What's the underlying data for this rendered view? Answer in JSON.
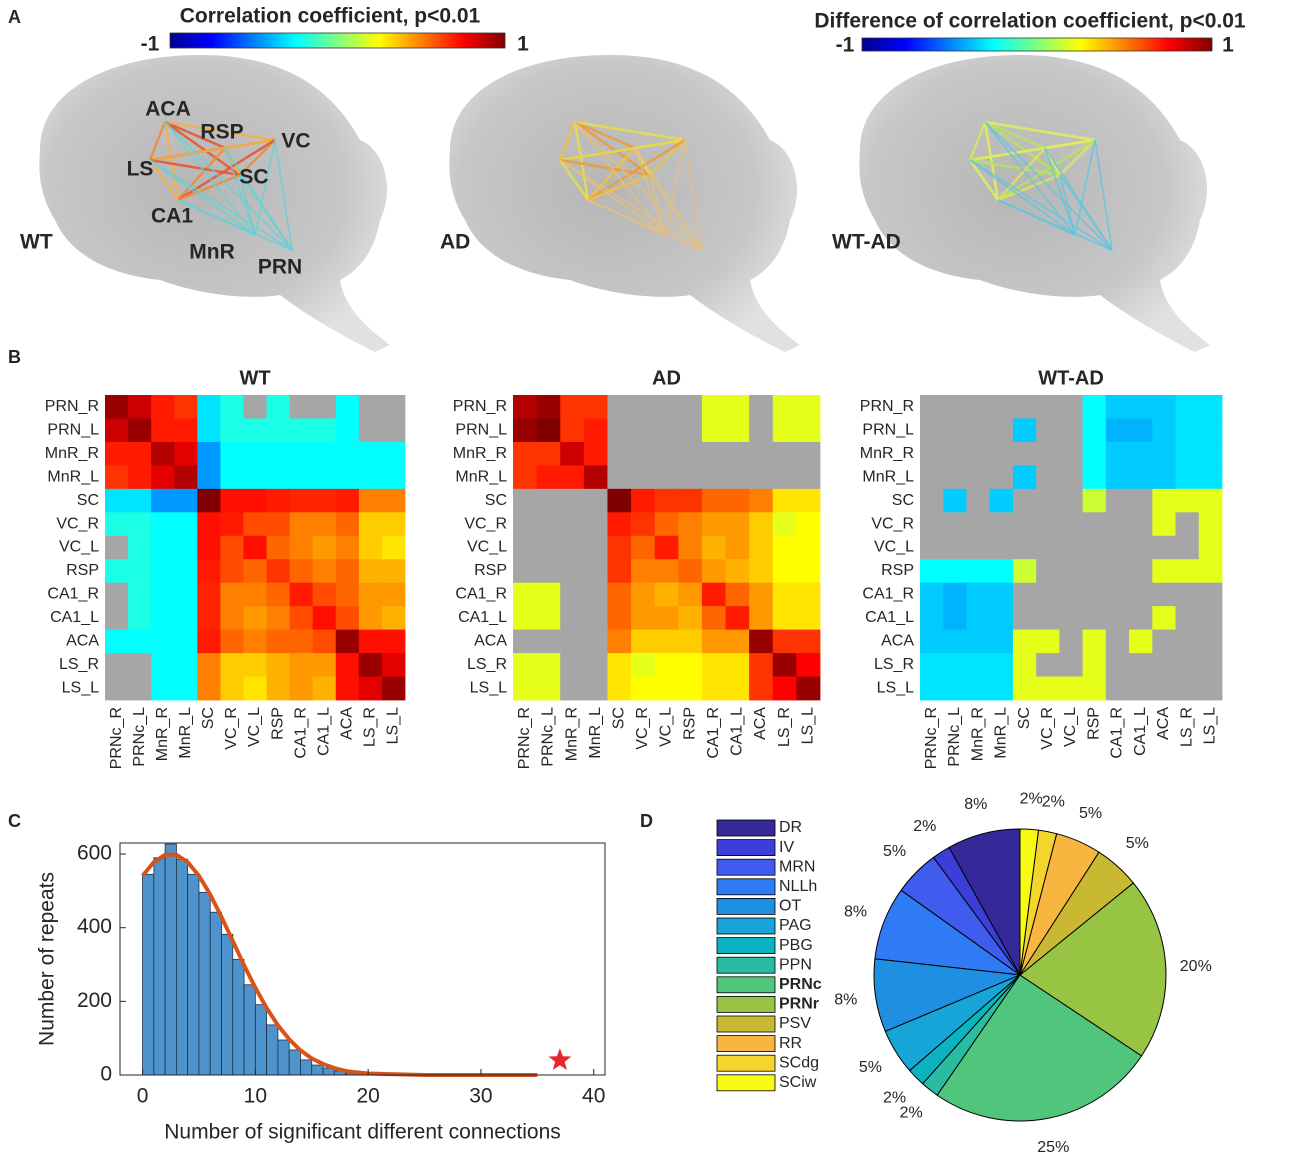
{
  "panel_labels": [
    "A",
    "B",
    "C",
    "D"
  ],
  "panel_a": {
    "colorbars": [
      {
        "title": "Correlation coefficient, p<0.01",
        "ticks": [
          -1,
          1
        ]
      },
      {
        "title": "Difference of correlation coefficient, p<0.01",
        "ticks": [
          -1,
          1
        ]
      }
    ],
    "brains": [
      "WT",
      "AD",
      "WT-AD"
    ],
    "regions": [
      "ACA",
      "RSP",
      "VC",
      "LS",
      "SC",
      "CA1",
      "MnR",
      "PRN"
    ]
  },
  "chart_data": [
    {
      "type": "heatmap",
      "title": "WT",
      "zlim": [
        -1,
        1
      ],
      "colormap": "jet",
      "nan_color": "#a6a6a6",
      "x": [
        "PRNc_R",
        "PRNc_L",
        "MnR_R",
        "MnR_L",
        "SC",
        "VC_R",
        "VC_L",
        "RSP",
        "CA1_R",
        "CA1_L",
        "ACA",
        "LS_R",
        "LS_L"
      ],
      "y": [
        "PRN_R",
        "PRN_L",
        "MnR_R",
        "MnR_L",
        "SC",
        "VC_R",
        "VC_L",
        "RSP",
        "CA1_R",
        "CA1_L",
        "ACA",
        "LS_R",
        "LS_L"
      ],
      "values": [
        [
          0.95,
          0.85,
          0.7,
          0.65,
          -0.3,
          -0.2,
          null,
          -0.2,
          null,
          null,
          -0.25,
          null,
          null
        ],
        [
          0.85,
          0.95,
          0.7,
          0.7,
          -0.3,
          -0.2,
          -0.2,
          -0.2,
          -0.2,
          -0.2,
          -0.25,
          null,
          null
        ],
        [
          0.7,
          0.7,
          0.9,
          0.8,
          -0.45,
          -0.25,
          -0.25,
          -0.25,
          -0.25,
          -0.25,
          -0.25,
          -0.25,
          -0.25
        ],
        [
          0.65,
          0.7,
          0.8,
          0.9,
          -0.45,
          -0.25,
          -0.25,
          -0.25,
          -0.25,
          -0.25,
          -0.25,
          -0.25,
          -0.25
        ],
        [
          -0.3,
          -0.3,
          -0.45,
          -0.45,
          1,
          0.72,
          0.72,
          0.7,
          0.68,
          0.68,
          0.7,
          0.5,
          0.5
        ],
        [
          -0.2,
          -0.2,
          -0.25,
          -0.25,
          0.72,
          0.7,
          0.6,
          0.6,
          0.5,
          0.5,
          0.55,
          0.35,
          0.35
        ],
        [
          null,
          -0.2,
          -0.25,
          -0.25,
          0.72,
          0.6,
          0.72,
          0.55,
          0.5,
          0.45,
          0.5,
          0.35,
          0.3
        ],
        [
          -0.2,
          -0.2,
          -0.25,
          -0.25,
          0.7,
          0.6,
          0.55,
          0.65,
          0.55,
          0.5,
          0.55,
          0.4,
          0.4
        ],
        [
          null,
          -0.2,
          -0.25,
          -0.25,
          0.68,
          0.5,
          0.5,
          0.55,
          0.7,
          0.6,
          0.55,
          0.45,
          0.45
        ],
        [
          null,
          -0.2,
          -0.25,
          -0.25,
          0.68,
          0.5,
          0.45,
          0.5,
          0.6,
          0.72,
          0.6,
          0.45,
          0.4
        ],
        [
          -0.25,
          -0.25,
          -0.25,
          -0.25,
          0.7,
          0.55,
          0.5,
          0.55,
          0.55,
          0.6,
          0.95,
          0.72,
          0.72
        ],
        [
          null,
          null,
          -0.25,
          -0.25,
          0.5,
          0.35,
          0.35,
          0.4,
          0.45,
          0.45,
          0.72,
          0.95,
          0.8
        ],
        [
          null,
          null,
          -0.25,
          -0.25,
          0.5,
          0.35,
          0.3,
          0.4,
          0.45,
          0.4,
          0.72,
          0.8,
          0.95
        ]
      ]
    },
    {
      "type": "heatmap",
      "title": "AD",
      "zlim": [
        -1,
        1
      ],
      "colormap": "jet",
      "nan_color": "#a6a6a6",
      "x": [
        "PRNc_R",
        "PRNc_L",
        "MnR_R",
        "MnR_L",
        "SC",
        "VC_R",
        "VC_L",
        "RSP",
        "CA1_R",
        "CA1_L",
        "ACA",
        "LS_R",
        "LS_L"
      ],
      "y": [
        "PRN_R",
        "PRN_L",
        "MnR_R",
        "MnR_L",
        "SC",
        "VC_R",
        "VC_L",
        "RSP",
        "CA1_R",
        "CA1_L",
        "ACA",
        "LS_R",
        "LS_L"
      ],
      "values": [
        [
          0.9,
          0.95,
          0.65,
          0.65,
          null,
          null,
          null,
          null,
          0.2,
          0.2,
          null,
          0.2,
          0.2
        ],
        [
          0.95,
          1,
          0.65,
          0.7,
          null,
          null,
          null,
          null,
          0.2,
          0.2,
          null,
          0.2,
          0.2
        ],
        [
          0.65,
          0.65,
          0.85,
          0.7,
          null,
          null,
          null,
          null,
          null,
          null,
          null,
          null,
          null
        ],
        [
          0.65,
          0.7,
          0.7,
          0.9,
          null,
          null,
          null,
          null,
          null,
          null,
          null,
          null,
          null
        ],
        [
          null,
          null,
          null,
          null,
          1,
          0.7,
          0.65,
          0.65,
          0.55,
          0.55,
          0.5,
          0.3,
          0.3
        ],
        [
          null,
          null,
          null,
          null,
          0.7,
          0.65,
          0.55,
          0.5,
          0.45,
          0.45,
          0.35,
          0.2,
          0.25
        ],
        [
          null,
          null,
          null,
          null,
          0.65,
          0.55,
          0.7,
          0.5,
          0.4,
          0.45,
          0.35,
          0.25,
          0.25
        ],
        [
          null,
          null,
          null,
          null,
          0.65,
          0.5,
          0.5,
          0.55,
          0.45,
          0.4,
          0.35,
          0.25,
          0.25
        ],
        [
          0.2,
          0.2,
          null,
          null,
          0.55,
          0.45,
          0.4,
          0.45,
          0.7,
          0.55,
          0.45,
          0.3,
          0.3
        ],
        [
          0.2,
          0.2,
          null,
          null,
          0.55,
          0.45,
          0.45,
          0.4,
          0.55,
          0.7,
          0.45,
          0.3,
          0.3
        ],
        [
          null,
          null,
          null,
          null,
          0.5,
          0.35,
          0.35,
          0.35,
          0.45,
          0.45,
          0.95,
          0.65,
          0.65
        ],
        [
          0.2,
          0.2,
          null,
          null,
          0.3,
          0.2,
          0.25,
          0.25,
          0.3,
          0.3,
          0.65,
          0.95,
          0.75
        ],
        [
          0.2,
          0.2,
          null,
          null,
          0.3,
          0.25,
          0.25,
          0.25,
          0.3,
          0.3,
          0.65,
          0.75,
          0.95
        ]
      ]
    },
    {
      "type": "heatmap",
      "title": "WT-AD",
      "zlim": [
        -1,
        1
      ],
      "colormap": "jet",
      "nan_color": "#a6a6a6",
      "x": [
        "PRNc_R",
        "PRNc_L",
        "MnR_R",
        "MnR_L",
        "SC",
        "VC_R",
        "VC_L",
        "RSP",
        "CA1_R",
        "CA1_L",
        "ACA",
        "LS_R",
        "LS_L"
      ],
      "y": [
        "PRN_R",
        "PRN_L",
        "MnR_R",
        "MnR_L",
        "SC",
        "VC_R",
        "VC_L",
        "RSP",
        "CA1_R",
        "CA1_L",
        "ACA",
        "LS_R",
        "LS_L"
      ],
      "values": [
        [
          null,
          null,
          null,
          null,
          null,
          null,
          null,
          -0.25,
          -0.35,
          -0.35,
          -0.35,
          -0.3,
          -0.3
        ],
        [
          null,
          null,
          null,
          null,
          -0.35,
          null,
          null,
          -0.25,
          -0.4,
          -0.4,
          -0.35,
          -0.3,
          -0.3
        ],
        [
          null,
          null,
          null,
          null,
          null,
          null,
          null,
          -0.25,
          -0.35,
          -0.35,
          -0.35,
          -0.3,
          -0.3
        ],
        [
          null,
          null,
          null,
          null,
          -0.35,
          null,
          null,
          -0.25,
          -0.35,
          -0.35,
          -0.35,
          -0.3,
          -0.3
        ],
        [
          null,
          -0.35,
          null,
          -0.35,
          null,
          null,
          null,
          0.15,
          null,
          null,
          0.2,
          0.2,
          0.2
        ],
        [
          null,
          null,
          null,
          null,
          null,
          null,
          null,
          null,
          null,
          null,
          0.2,
          null,
          0.2
        ],
        [
          null,
          null,
          null,
          null,
          null,
          null,
          null,
          null,
          null,
          null,
          null,
          null,
          0.2
        ],
        [
          -0.25,
          -0.25,
          -0.25,
          -0.25,
          0.15,
          null,
          null,
          null,
          null,
          null,
          0.2,
          0.2,
          0.2
        ],
        [
          -0.35,
          -0.4,
          -0.35,
          -0.35,
          null,
          null,
          null,
          null,
          null,
          null,
          null,
          null,
          null
        ],
        [
          -0.35,
          -0.4,
          -0.35,
          -0.35,
          null,
          null,
          null,
          null,
          null,
          null,
          0.2,
          null,
          null
        ],
        [
          -0.35,
          -0.35,
          -0.35,
          -0.35,
          0.2,
          0.2,
          null,
          0.2,
          null,
          0.2,
          null,
          null,
          null
        ],
        [
          -0.3,
          -0.3,
          -0.3,
          -0.3,
          0.2,
          null,
          null,
          0.2,
          null,
          null,
          null,
          null,
          null
        ],
        [
          -0.3,
          -0.3,
          -0.3,
          -0.3,
          0.2,
          0.2,
          0.2,
          0.2,
          null,
          null,
          null,
          null,
          null
        ]
      ]
    },
    {
      "type": "histogram",
      "xlabel": "Number of significant different connections",
      "ylabel": "Number of repeats",
      "bins": [
        0,
        1,
        2,
        3,
        4,
        5,
        6,
        7,
        8,
        9,
        10,
        11,
        12,
        13,
        14,
        15,
        16,
        17,
        18,
        19,
        20
      ],
      "values": [
        545,
        590,
        627,
        586,
        545,
        496,
        442,
        382,
        314,
        245,
        191,
        136,
        95,
        68,
        41,
        27,
        19,
        11,
        5,
        3
      ],
      "color": "#4f93cc",
      "edge_color": "#1c3147",
      "line_x": [
        0,
        1,
        2,
        3,
        4,
        5,
        6,
        7,
        8,
        9,
        10,
        11,
        12,
        13,
        14,
        15,
        16,
        17,
        18,
        19,
        20,
        25,
        30,
        35
      ],
      "line_y": [
        541,
        578,
        598,
        598,
        578,
        541,
        490,
        429,
        364,
        298,
        237,
        182,
        135,
        97,
        67,
        45,
        30,
        19,
        11,
        7,
        4,
        0,
        0,
        0
      ],
      "line_color": "#d95319",
      "marker_x": [
        37
      ],
      "marker_y": [
        40
      ],
      "marker_color": "#e8262b",
      "xlim": [
        -2,
        41
      ],
      "ylim": [
        0,
        630
      ],
      "xticks": [
        0,
        10,
        20,
        30,
        40
      ],
      "yticks": [
        0,
        200,
        400,
        600
      ]
    },
    {
      "type": "pie",
      "categories": [
        "DR",
        "IV",
        "MRN",
        "NLLh",
        "OT",
        "PAG",
        "PBG",
        "PPN",
        "PRNc",
        "PRNr",
        "PSV",
        "RR",
        "SCdg",
        "SCiw"
      ],
      "values": [
        8,
        2,
        5,
        8,
        8,
        5,
        2,
        2,
        25,
        20,
        5,
        5,
        2,
        2
      ],
      "value_labels": [
        "8%",
        "2%",
        "5%",
        "8%",
        "8%",
        "5%",
        "2%",
        "2%",
        "25%",
        "20%",
        "5%",
        "5%",
        "2%",
        "2%"
      ],
      "colors": [
        "#35299a",
        "#3b3ed8",
        "#3f5cef",
        "#2f7bf6",
        "#1f8fe2",
        "#17a5d7",
        "#0bb3c1",
        "#29bca1",
        "#4fc67c",
        "#98c444",
        "#c9b832",
        "#f8b53f",
        "#f4d52b",
        "#f8f915"
      ],
      "emphasis": [
        false,
        false,
        false,
        false,
        false,
        false,
        false,
        false,
        true,
        true,
        false,
        false,
        false,
        false
      ],
      "emphasis_color": "#e8262b"
    }
  ]
}
